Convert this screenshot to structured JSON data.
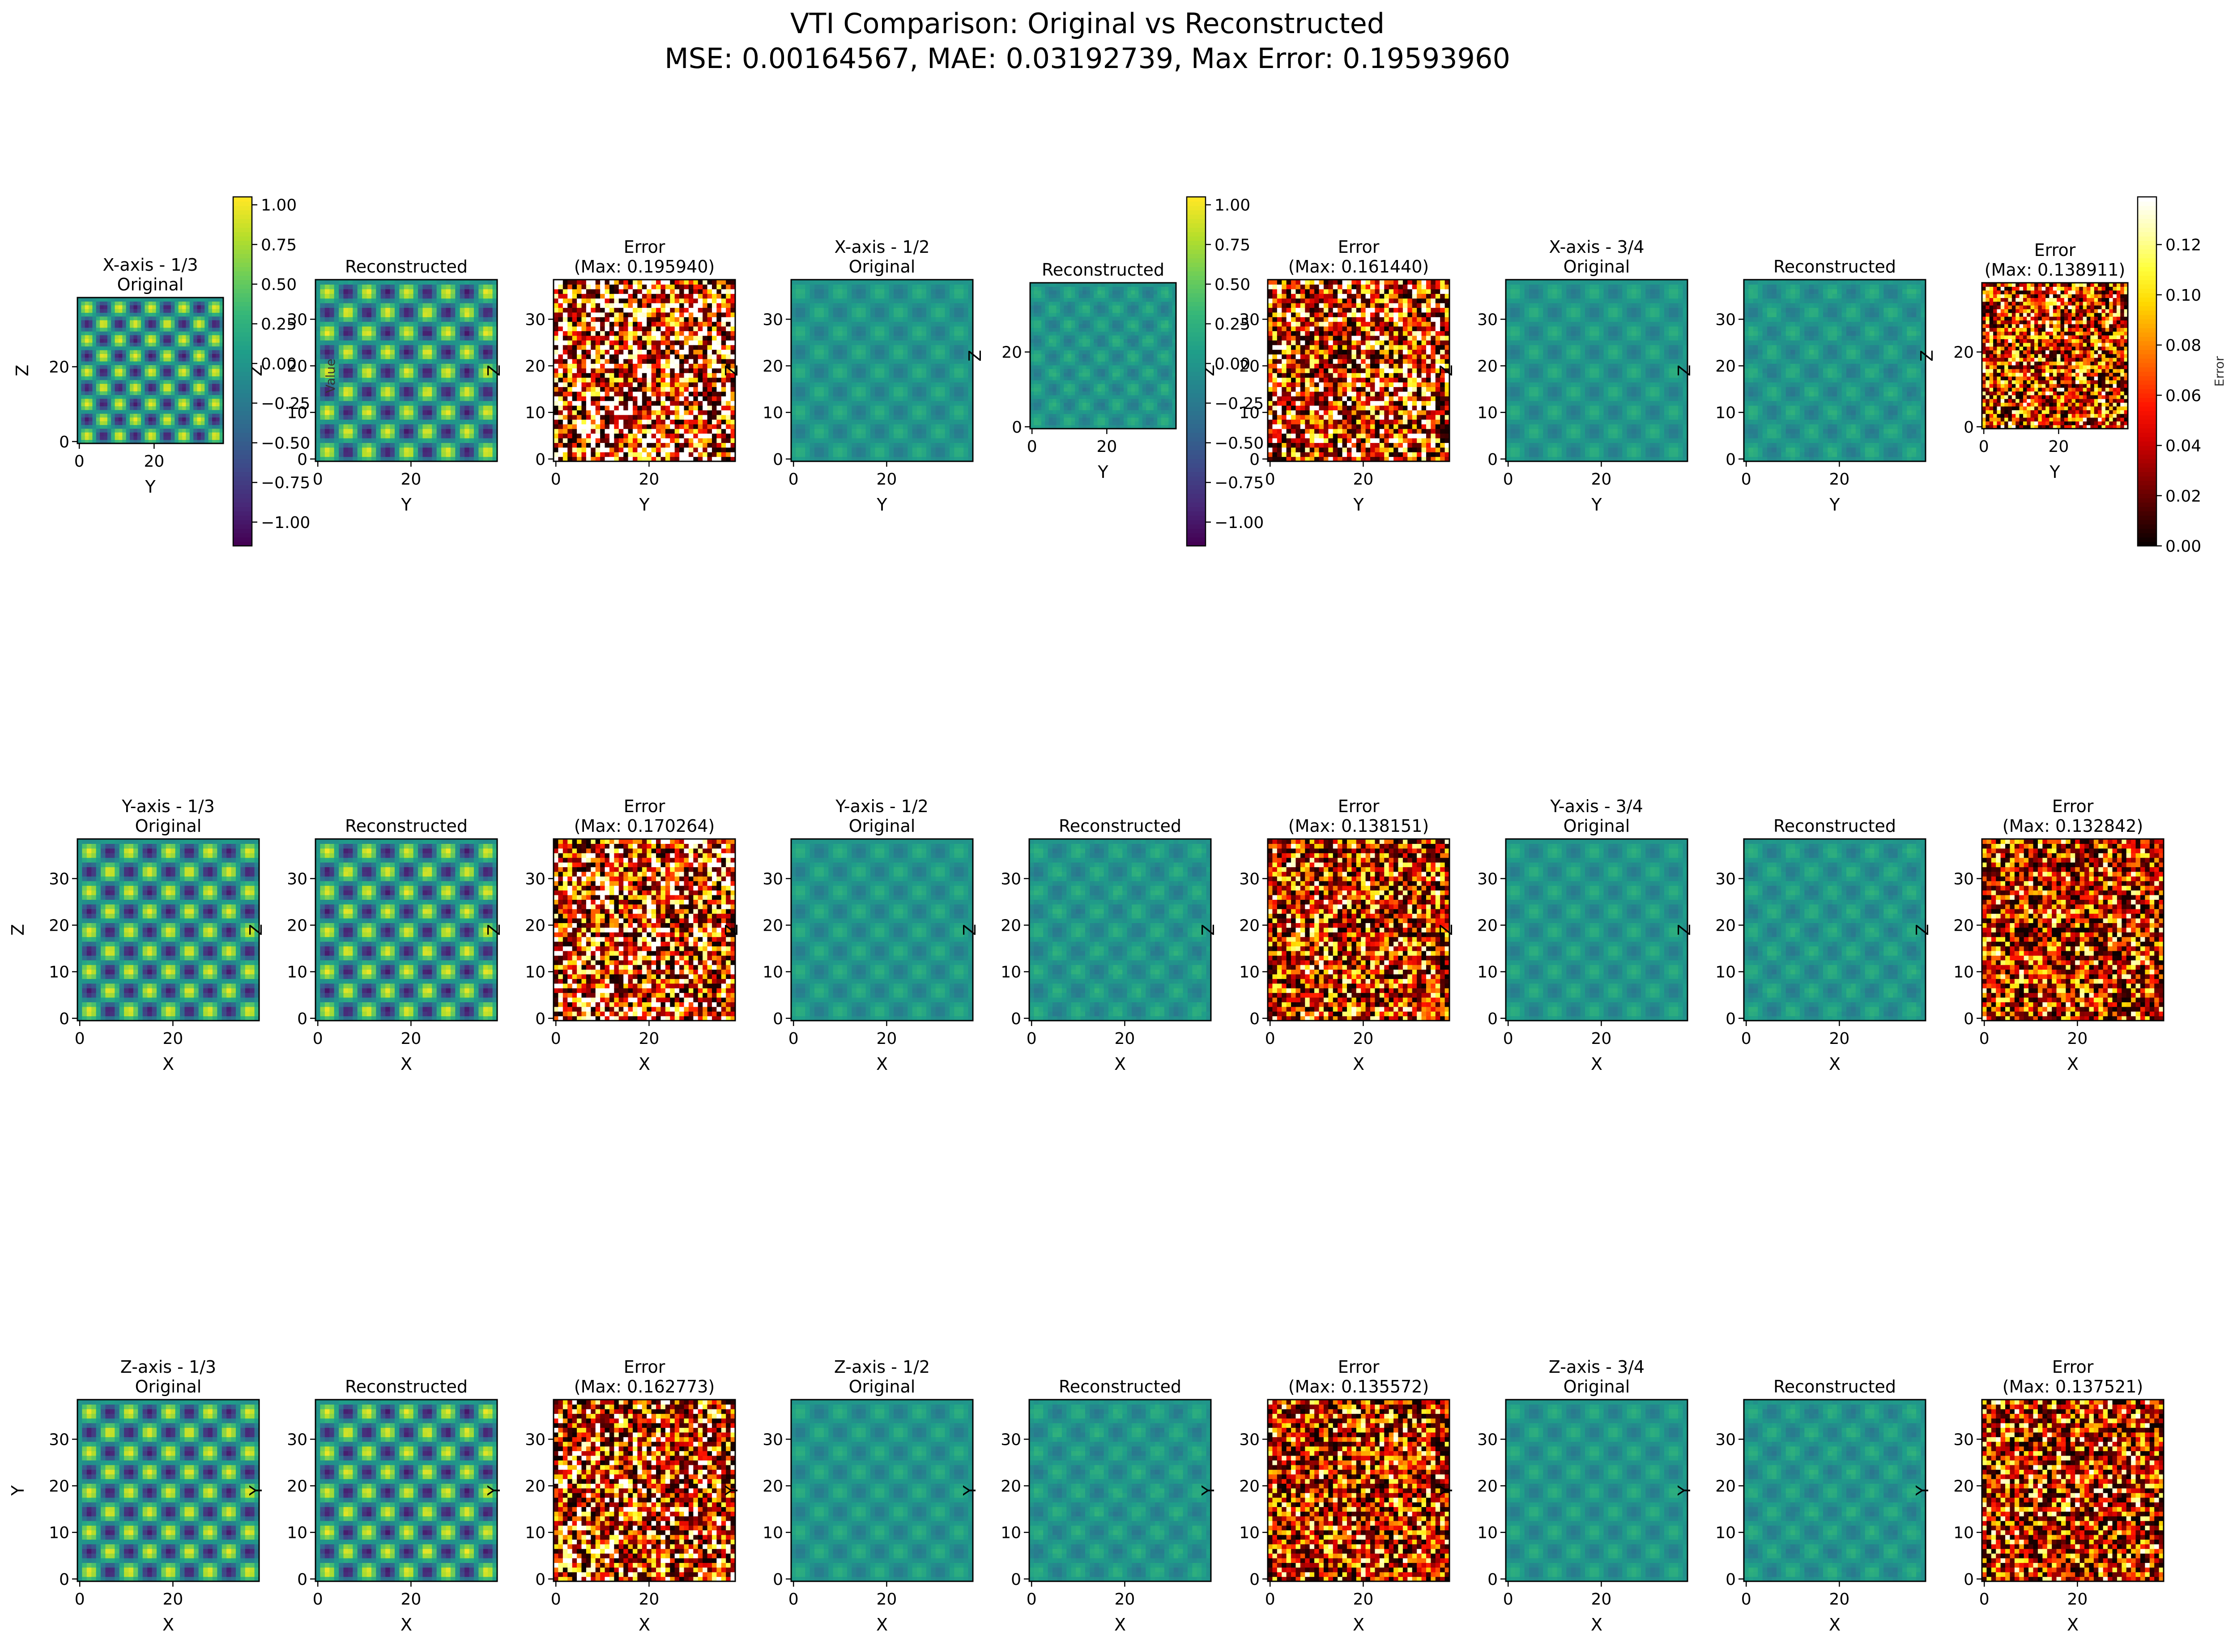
{
  "figure": {
    "title_line1": "VTI Comparison: Original vs Reconstructed",
    "title_line2": "MSE: 0.00164567, MAE: 0.03192739, Max Error: 0.19593960"
  },
  "colors": {
    "background": "#ffffff",
    "axis_frame": "#000000",
    "viridis": [
      "#440154",
      "#482878",
      "#3e4989",
      "#31688e",
      "#26828e",
      "#1f9e89",
      "#35b779",
      "#6ece58",
      "#b5de2b",
      "#fde725"
    ],
    "hot": [
      "#0b0000",
      "#4d0000",
      "#8f0000",
      "#d10000",
      "#ff1400",
      "#ff5600",
      "#ff9800",
      "#ffda00",
      "#ffff3d",
      "#ffffa8",
      "#ffffff"
    ]
  },
  "value_colorbars": [
    {
      "ticks": [
        "1.00",
        "0.75",
        "0.50",
        "0.25",
        "0.00",
        "−0.25",
        "−0.50",
        "−0.75",
        "−1.00"
      ],
      "label": "Value"
    },
    {
      "ticks": [
        "1.00",
        "0.75",
        "0.50",
        "0.25",
        "0.00",
        "−0.25",
        "−0.50",
        "−0.75",
        "−1.00"
      ],
      "label": ""
    }
  ],
  "error_colorbar": {
    "ticks": [
      "0.12",
      "0.10",
      "0.08",
      "0.06",
      "0.04",
      "0.02",
      "0.00"
    ],
    "label": "Error"
  },
  "chart_data": {
    "type": "heatmap",
    "grid_size": 39,
    "axis_ticks": [
      0,
      20
    ],
    "value_colorbar_range": [
      -1.15,
      1.05
    ],
    "error_colorbar_range": [
      0,
      0.139
    ],
    "rows": [
      {
        "axis": "X",
        "xlabel": "Y",
        "ylabel": "Z",
        "y_ticks_small": [
          0,
          20
        ],
        "y_ticks_full": [
          0,
          10,
          20,
          30
        ],
        "panels": [
          {
            "kind": "original",
            "title": "X-axis - 1/3\nOriginal",
            "amplitude": 1.0
          },
          {
            "kind": "reconstructed",
            "title": "Reconstructed",
            "amplitude": 1.0
          },
          {
            "kind": "error",
            "title": "Error\n(Max: 0.195940)",
            "max_error": 0.19594
          },
          {
            "kind": "original",
            "title": "X-axis - 1/2\nOriginal",
            "amplitude": 0.25
          },
          {
            "kind": "reconstructed",
            "title": "Reconstructed",
            "amplitude": 0.25
          },
          {
            "kind": "error",
            "title": "Error\n(Max: 0.161440)",
            "max_error": 0.16144
          },
          {
            "kind": "original",
            "title": "X-axis - 3/4\nOriginal",
            "amplitude": 0.25
          },
          {
            "kind": "reconstructed",
            "title": "Reconstructed",
            "amplitude": 0.25
          },
          {
            "kind": "error",
            "title": "Error\n(Max: 0.138911)",
            "max_error": 0.138911
          }
        ]
      },
      {
        "axis": "Y",
        "xlabel": "X",
        "ylabel": "Z",
        "y_ticks_full": [
          0,
          10,
          20,
          30
        ],
        "panels": [
          {
            "kind": "original",
            "title": "Y-axis - 1/3\nOriginal",
            "amplitude": 1.0
          },
          {
            "kind": "reconstructed",
            "title": "Reconstructed",
            "amplitude": 1.0
          },
          {
            "kind": "error",
            "title": "Error\n(Max: 0.170264)",
            "max_error": 0.170264
          },
          {
            "kind": "original",
            "title": "Y-axis - 1/2\nOriginal",
            "amplitude": 0.25
          },
          {
            "kind": "reconstructed",
            "title": "Reconstructed",
            "amplitude": 0.25
          },
          {
            "kind": "error",
            "title": "Error\n(Max: 0.138151)",
            "max_error": 0.138151
          },
          {
            "kind": "original",
            "title": "Y-axis - 3/4\nOriginal",
            "amplitude": 0.25
          },
          {
            "kind": "reconstructed",
            "title": "Reconstructed",
            "amplitude": 0.25
          },
          {
            "kind": "error",
            "title": "Error\n(Max: 0.132842)",
            "max_error": 0.132842
          }
        ]
      },
      {
        "axis": "Z",
        "xlabel": "X",
        "ylabel": "Y",
        "y_ticks_full": [
          0,
          10,
          20,
          30
        ],
        "panels": [
          {
            "kind": "original",
            "title": "Z-axis - 1/3\nOriginal",
            "amplitude": 1.0
          },
          {
            "kind": "reconstructed",
            "title": "Reconstructed",
            "amplitude": 1.0
          },
          {
            "kind": "error",
            "title": "Error\n(Max: 0.162773)",
            "max_error": 0.162773
          },
          {
            "kind": "original",
            "title": "Z-axis - 1/2\nOriginal",
            "amplitude": 0.25
          },
          {
            "kind": "reconstructed",
            "title": "Reconstructed",
            "amplitude": 0.25
          },
          {
            "kind": "error",
            "title": "Error\n(Max: 0.135572)",
            "max_error": 0.135572
          },
          {
            "kind": "original",
            "title": "Z-axis - 3/4\nOriginal",
            "amplitude": 0.25
          },
          {
            "kind": "reconstructed",
            "title": "Reconstructed",
            "amplitude": 0.25
          },
          {
            "kind": "error",
            "title": "Error\n(Max: 0.137521)",
            "max_error": 0.137521
          }
        ]
      }
    ]
  }
}
